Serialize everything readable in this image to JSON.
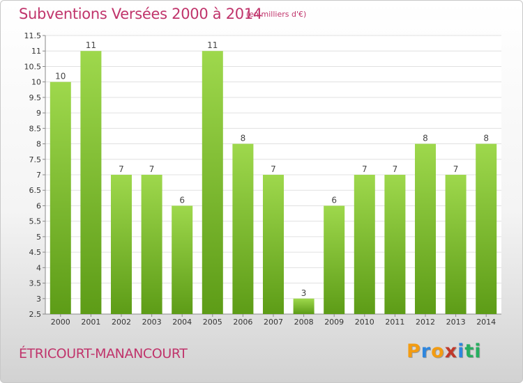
{
  "header": {
    "title": "Subventions Versées 2000 à 2014",
    "unit": "(en milliers d'€)"
  },
  "footer": {
    "commune": "ÉTRICOURT-MANANCOURT",
    "logo": "Proxiti"
  },
  "colors": {
    "title": "#c0346b",
    "bar_light": "#9ed84c",
    "bar_dark": "#5d9c17",
    "grid": "#e0e0e0",
    "logo_letters": [
      "#f39c12",
      "#2e86de",
      "#f39c12",
      "#c0392b",
      "#2e86de",
      "#27ae60",
      "#27ae60"
    ]
  },
  "chart_data": {
    "type": "bar",
    "categories": [
      "2000",
      "2001",
      "2002",
      "2003",
      "2004",
      "2005",
      "2006",
      "2007",
      "2008",
      "2009",
      "2010",
      "2011",
      "2012",
      "2013",
      "2014"
    ],
    "values": [
      10,
      11,
      7,
      7,
      6,
      11,
      8,
      7,
      3,
      6,
      7,
      7,
      8,
      7,
      8
    ],
    "ylim": [
      2.5,
      11.5
    ],
    "yticks": [
      "2.5",
      "3",
      "3.5",
      "4",
      "4.5",
      "5",
      "5.5",
      "6",
      "6.5",
      "7",
      "7.5",
      "8",
      "8.5",
      "9",
      "9.5",
      "10",
      "10.5",
      "11",
      "11.5"
    ],
    "grid": true
  }
}
